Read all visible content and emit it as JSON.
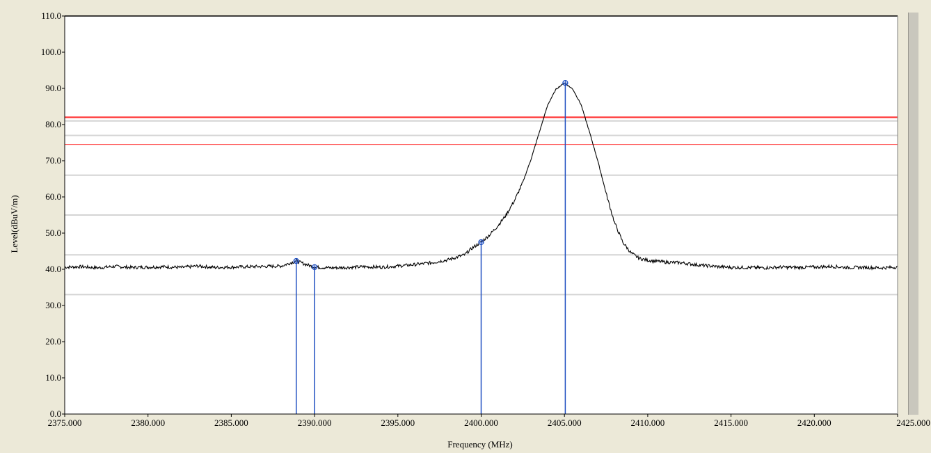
{
  "chart_data": {
    "type": "line",
    "xlabel": "Frequency (MHz)",
    "ylabel": "Level(dBuV/m)",
    "xlim": [
      2375,
      2425
    ],
    "ylim": [
      0,
      110
    ],
    "x_ticks": [
      "2375.000",
      "2380.000",
      "2385.000",
      "2390.000",
      "2395.000",
      "2400.000",
      "2405.000",
      "2410.000",
      "2415.000",
      "2420.000",
      "2425.000"
    ],
    "y_ticks": [
      "0.0",
      "10.0",
      "20.0",
      "30.0",
      "40.0",
      "50.0",
      "60.0",
      "70.0",
      "80.0",
      "90.0",
      "100.0",
      "110.0"
    ],
    "grid": true,
    "background": "#ffffff",
    "trace_color": "#000000",
    "marker_color": "#1f4fc1",
    "limit_line_color": "#ff4040",
    "series": [
      {
        "x": [
          2375,
          2376,
          2377,
          2378,
          2379,
          2380,
          2381,
          2382,
          2383,
          2384,
          2385,
          2386,
          2387,
          2388,
          2388.9,
          2389.5,
          2390,
          2391,
          2392,
          2393,
          2394,
          2395,
          2396,
          2397,
          2398,
          2399,
          2399.5,
          2400,
          2400.5,
          2401,
          2401.5,
          2402,
          2402.5,
          2403,
          2403.5,
          2404,
          2404.5,
          2405,
          2405.5,
          2406,
          2406.5,
          2407,
          2407.5,
          2408,
          2408.5,
          2409,
          2409.5,
          2410,
          2411,
          2412,
          2413,
          2414,
          2415,
          2416,
          2417,
          2418,
          2419,
          2420,
          2421,
          2422,
          2423,
          2424,
          2425
        ],
        "y": [
          40.6,
          40.7,
          40.4,
          40.8,
          40.5,
          40.6,
          40.7,
          40.5,
          40.9,
          40.5,
          40.6,
          40.7,
          40.8,
          40.9,
          42.3,
          41.3,
          40.6,
          40.4,
          40.5,
          40.7,
          40.6,
          40.9,
          41.3,
          41.8,
          42.6,
          44.0,
          46.0,
          47.5,
          49.5,
          52.0,
          55.0,
          59.0,
          64.0,
          70.5,
          78.0,
          85.5,
          89.8,
          91.5,
          89.8,
          85.5,
          78.0,
          70.0,
          61.0,
          53.0,
          47.5,
          44.5,
          43.0,
          42.5,
          42.0,
          41.8,
          41.2,
          40.8,
          40.5,
          40.5,
          40.4,
          40.6,
          40.5,
          40.6,
          40.8,
          40.5,
          40.5,
          40.4,
          40.6
        ]
      }
    ],
    "markers": [
      {
        "x": 2388.9,
        "y": 42.3
      },
      {
        "x": 2390.0,
        "y": 40.6
      },
      {
        "x": 2400.0,
        "y": 47.5
      },
      {
        "x": 2405.05,
        "y": 91.5
      }
    ],
    "limit_lines": [
      {
        "y": 82.0,
        "style": "thick"
      },
      {
        "y": 74.5,
        "style": "thin"
      }
    ],
    "gray_lines": [
      81.0,
      77.0,
      66.0,
      55.0,
      44.0,
      33.0
    ]
  }
}
